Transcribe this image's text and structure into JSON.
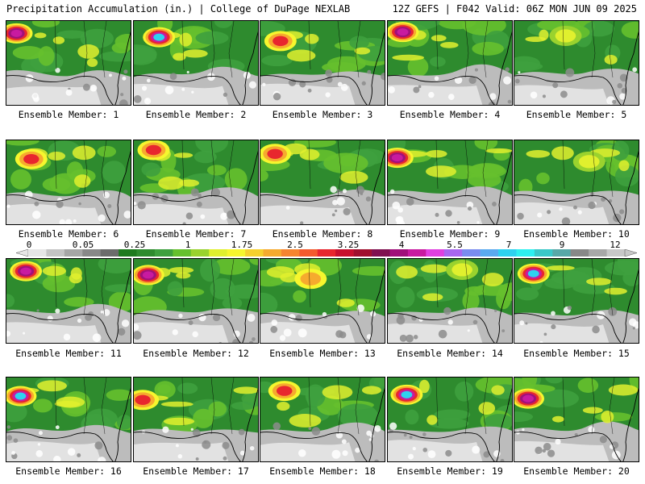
{
  "header": {
    "left": "Precipitation Accumulation (in.) | College of DuPage NEXLAB",
    "right": "12Z GEFS | F042 Valid: 06Z MON JUN 09 2025"
  },
  "colorbar": {
    "tick_labels": [
      "0",
      "0.05",
      "0.25",
      "1",
      "1.75",
      "2.5",
      "3.25",
      "4",
      "5.5",
      "7",
      "9",
      "12"
    ],
    "colors": [
      "#e6e6e6",
      "#c4c4c4",
      "#a6a6a6",
      "#888888",
      "#6c6c6c",
      "#1e7a1e",
      "#2e8b2e",
      "#3ea03e",
      "#66c02e",
      "#9ad22e",
      "#e0f02e",
      "#f6f62e",
      "#f6d02e",
      "#f6aa2e",
      "#f6842e",
      "#f45a2e",
      "#e8262e",
      "#c8102e",
      "#a0102e",
      "#801050",
      "#a0107a",
      "#c81aa0",
      "#e040e0",
      "#a866f0",
      "#7a8cf0",
      "#5aaaf0",
      "#2ed2f0",
      "#2ef0f0",
      "#3ac8c8",
      "#58a8a8",
      "#888888",
      "#a8a8a8",
      "#c8c8c8"
    ]
  },
  "legend": {
    "ocean": "#ffffff",
    "land_light": "#d8d8d8",
    "land_green": "#2e8b2e"
  },
  "panels": [
    {
      "label": "Ensemble Member: 1",
      "peak": "magenta"
    },
    {
      "label": "Ensemble Member: 2",
      "peak": "cyan"
    },
    {
      "label": "Ensemble Member: 3",
      "peak": "red"
    },
    {
      "label": "Ensemble Member: 4",
      "peak": "magenta"
    },
    {
      "label": "Ensemble Member: 5",
      "peak": "yellow"
    },
    {
      "label": "Ensemble Member: 6",
      "peak": "red"
    },
    {
      "label": "Ensemble Member: 7",
      "peak": "red"
    },
    {
      "label": "Ensemble Member: 8",
      "peak": "red"
    },
    {
      "label": "Ensemble Member: 9",
      "peak": "magenta"
    },
    {
      "label": "Ensemble Member: 10",
      "peak": "yellow"
    },
    {
      "label": "Ensemble Member: 11",
      "peak": "magenta"
    },
    {
      "label": "Ensemble Member: 12",
      "peak": "magenta"
    },
    {
      "label": "Ensemble Member: 13",
      "peak": "orange"
    },
    {
      "label": "Ensemble Member: 14",
      "peak": "yellow"
    },
    {
      "label": "Ensemble Member: 15",
      "peak": "cyan"
    },
    {
      "label": "Ensemble Member: 16",
      "peak": "cyan"
    },
    {
      "label": "Ensemble Member: 17",
      "peak": "red"
    },
    {
      "label": "Ensemble Member: 18",
      "peak": "red"
    },
    {
      "label": "Ensemble Member: 19",
      "peak": "cyan"
    },
    {
      "label": "Ensemble Member: 20",
      "peak": "magenta"
    }
  ]
}
